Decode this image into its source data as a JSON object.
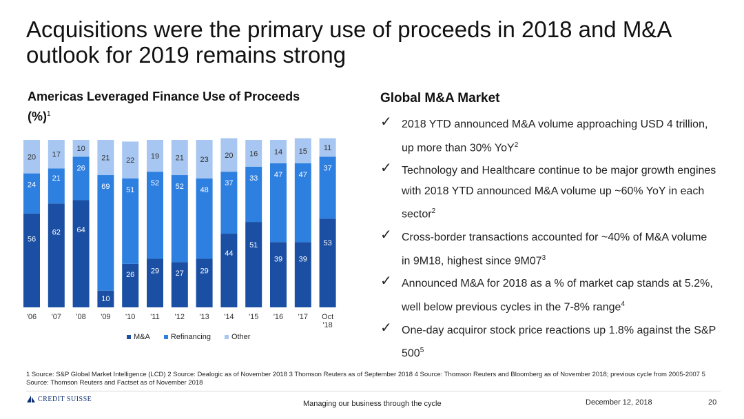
{
  "title": "Acquisitions were the primary use of proceeds in 2018 and M&A outlook for 2019 remains strong",
  "chart": {
    "title": "Americas Leveraged Finance Use of Proceeds",
    "title_line2": "(%)",
    "title_footnote": "1"
  },
  "chart_data": {
    "type": "bar",
    "stacked": true,
    "categories": [
      "'06",
      "'07",
      "'08",
      "'09",
      "'10",
      "'11",
      "'12",
      "'13",
      "'14",
      "'15",
      "'16",
      "'17",
      "Oct '18"
    ],
    "series": [
      {
        "name": "M&A",
        "color": "#1a4fa3",
        "values": [
          56,
          62,
          64,
          10,
          26,
          29,
          27,
          29,
          44,
          51,
          39,
          39,
          53
        ]
      },
      {
        "name": "Refinancing",
        "color": "#2d7fe0",
        "values": [
          24,
          21,
          26,
          69,
          51,
          52,
          52,
          48,
          37,
          33,
          47,
          47,
          37
        ]
      },
      {
        "name": "Other",
        "color": "#a7c6f1",
        "values": [
          20,
          17,
          10,
          21,
          22,
          19,
          21,
          23,
          20,
          16,
          14,
          15,
          11
        ]
      }
    ],
    "ylim": [
      0,
      100
    ],
    "grid": false,
    "legend_position": "bottom"
  },
  "mna": {
    "heading": "Global M&A Market",
    "check_symbol": "✓",
    "bullets": [
      {
        "text": "2018 YTD announced M&A volume approaching USD 4 trillion, up more than 30% YoY",
        "footnote": "2"
      },
      {
        "text": "Technology and Healthcare continue to be major growth engines with 2018 YTD announced M&A volume up ~60% YoY in each sector",
        "footnote": "2"
      },
      {
        "text": "Cross-border transactions accounted for ~40% of M&A volume in 9M18, highest since 9M07",
        "footnote": "3"
      },
      {
        "text": "Announced M&A for 2018 as a % of market cap stands at 5.2%, well below previous cycles in the 7-8% range",
        "footnote": "4"
      },
      {
        "text": "One-day acquiror stock price reactions up 1.8% against the S&P 500",
        "footnote": "5"
      }
    ]
  },
  "footnotes": "1 Source: S&P Global Market Intelligence (LCD)     2 Source: Dealogic as of November 2018     3 Thomson Reuters as of September 2018     4 Source: Thomson Reuters and Bloomberg as of November 2018; previous cycle from 2005-2007     5 Source: Thomson Reuters and Factset as of November 2018",
  "footer": {
    "logo_text": "CREDIT SUISSE",
    "center": "Managing our business through the cycle",
    "date": "December 12, 2018",
    "page": "20"
  },
  "colors": {
    "ma": "#1a4fa3",
    "refinancing": "#2d7fe0",
    "other": "#a7c6f1",
    "brand": "#0d2f73"
  }
}
